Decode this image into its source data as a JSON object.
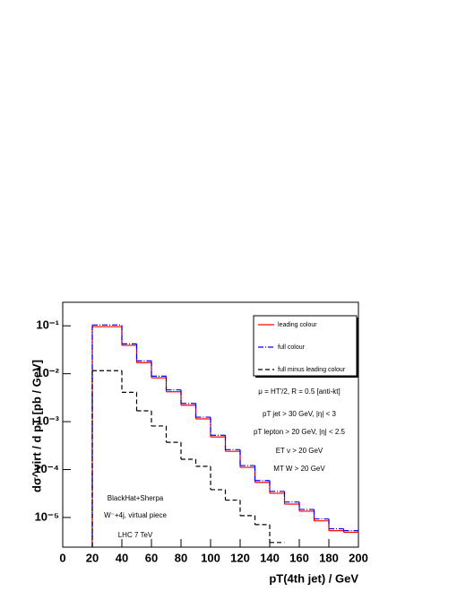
{
  "chart_data": {
    "type": "histogram",
    "x_label": "pT(4th jet) / GeV",
    "y_label": "dσ^virt / d pT [pb / GeV]",
    "bins": [
      20,
      40,
      50,
      60,
      70,
      80,
      90,
      100,
      110,
      120,
      130,
      140,
      150,
      160,
      170,
      180,
      190,
      200
    ],
    "series": [
      {
        "name": "leading colour",
        "color": "#ff0000",
        "style": "solid",
        "values": [
          0.096,
          0.039,
          0.017,
          0.0082,
          0.0042,
          0.0022,
          0.00114,
          0.00048,
          0.00024,
          0.000111,
          5.4e-05,
          3.2e-05,
          1.9e-05,
          1.35e-05,
          8.5e-06,
          5.3e-06,
          4.9e-06
        ]
      },
      {
        "name": "full colour",
        "color": "#0000ff",
        "style": "dashdot",
        "values": [
          0.104,
          0.042,
          0.0185,
          0.0089,
          0.0046,
          0.0024,
          0.00124,
          0.00052,
          0.00026,
          0.000121,
          5.9e-05,
          3.5e-05,
          2.1e-05,
          1.47e-05,
          9.3e-06,
          5.8e-06,
          5.3e-06
        ]
      },
      {
        "name": "full minus leading colour",
        "color": "#000000",
        "style": "dashed",
        "values": [
          0.0116,
          0.0041,
          0.00168,
          0.00081,
          0.00037,
          0.000164,
          0.000117,
          3.8e-05,
          2.3e-05,
          1.09e-05,
          7.1e-06,
          3e-06,
          null,
          null,
          null,
          null,
          null
        ]
      }
    ],
    "xlim": [
      0,
      200
    ],
    "xticks": [
      0,
      20,
      40,
      60,
      80,
      100,
      120,
      140,
      160,
      180,
      200
    ],
    "ylim": [
      2.4e-06,
      0.31
    ],
    "log_y": true,
    "yticks": [
      {
        "value": 1e-05,
        "label": "10⁻⁵"
      },
      {
        "value": 0.0001,
        "label": "10⁻⁴"
      },
      {
        "value": 0.001,
        "label": "10⁻³"
      },
      {
        "value": 0.01,
        "label": "10⁻²"
      },
      {
        "value": 0.1,
        "label": "10⁻¹"
      }
    ],
    "legend": "top right",
    "annotations": [
      "μ = HT'/2, R = 0.5 [anti-kt]",
      "pT jet > 30 GeV, |η| < 3",
      "pT lepton > 20 GeV, |η| < 2.5",
      "ET ν > 20 GeV",
      "MT W > 20 GeV",
      "BlackHat+Sherpa",
      "W⁻+4j, virtual piece",
      "LHC 7 TeV"
    ]
  }
}
